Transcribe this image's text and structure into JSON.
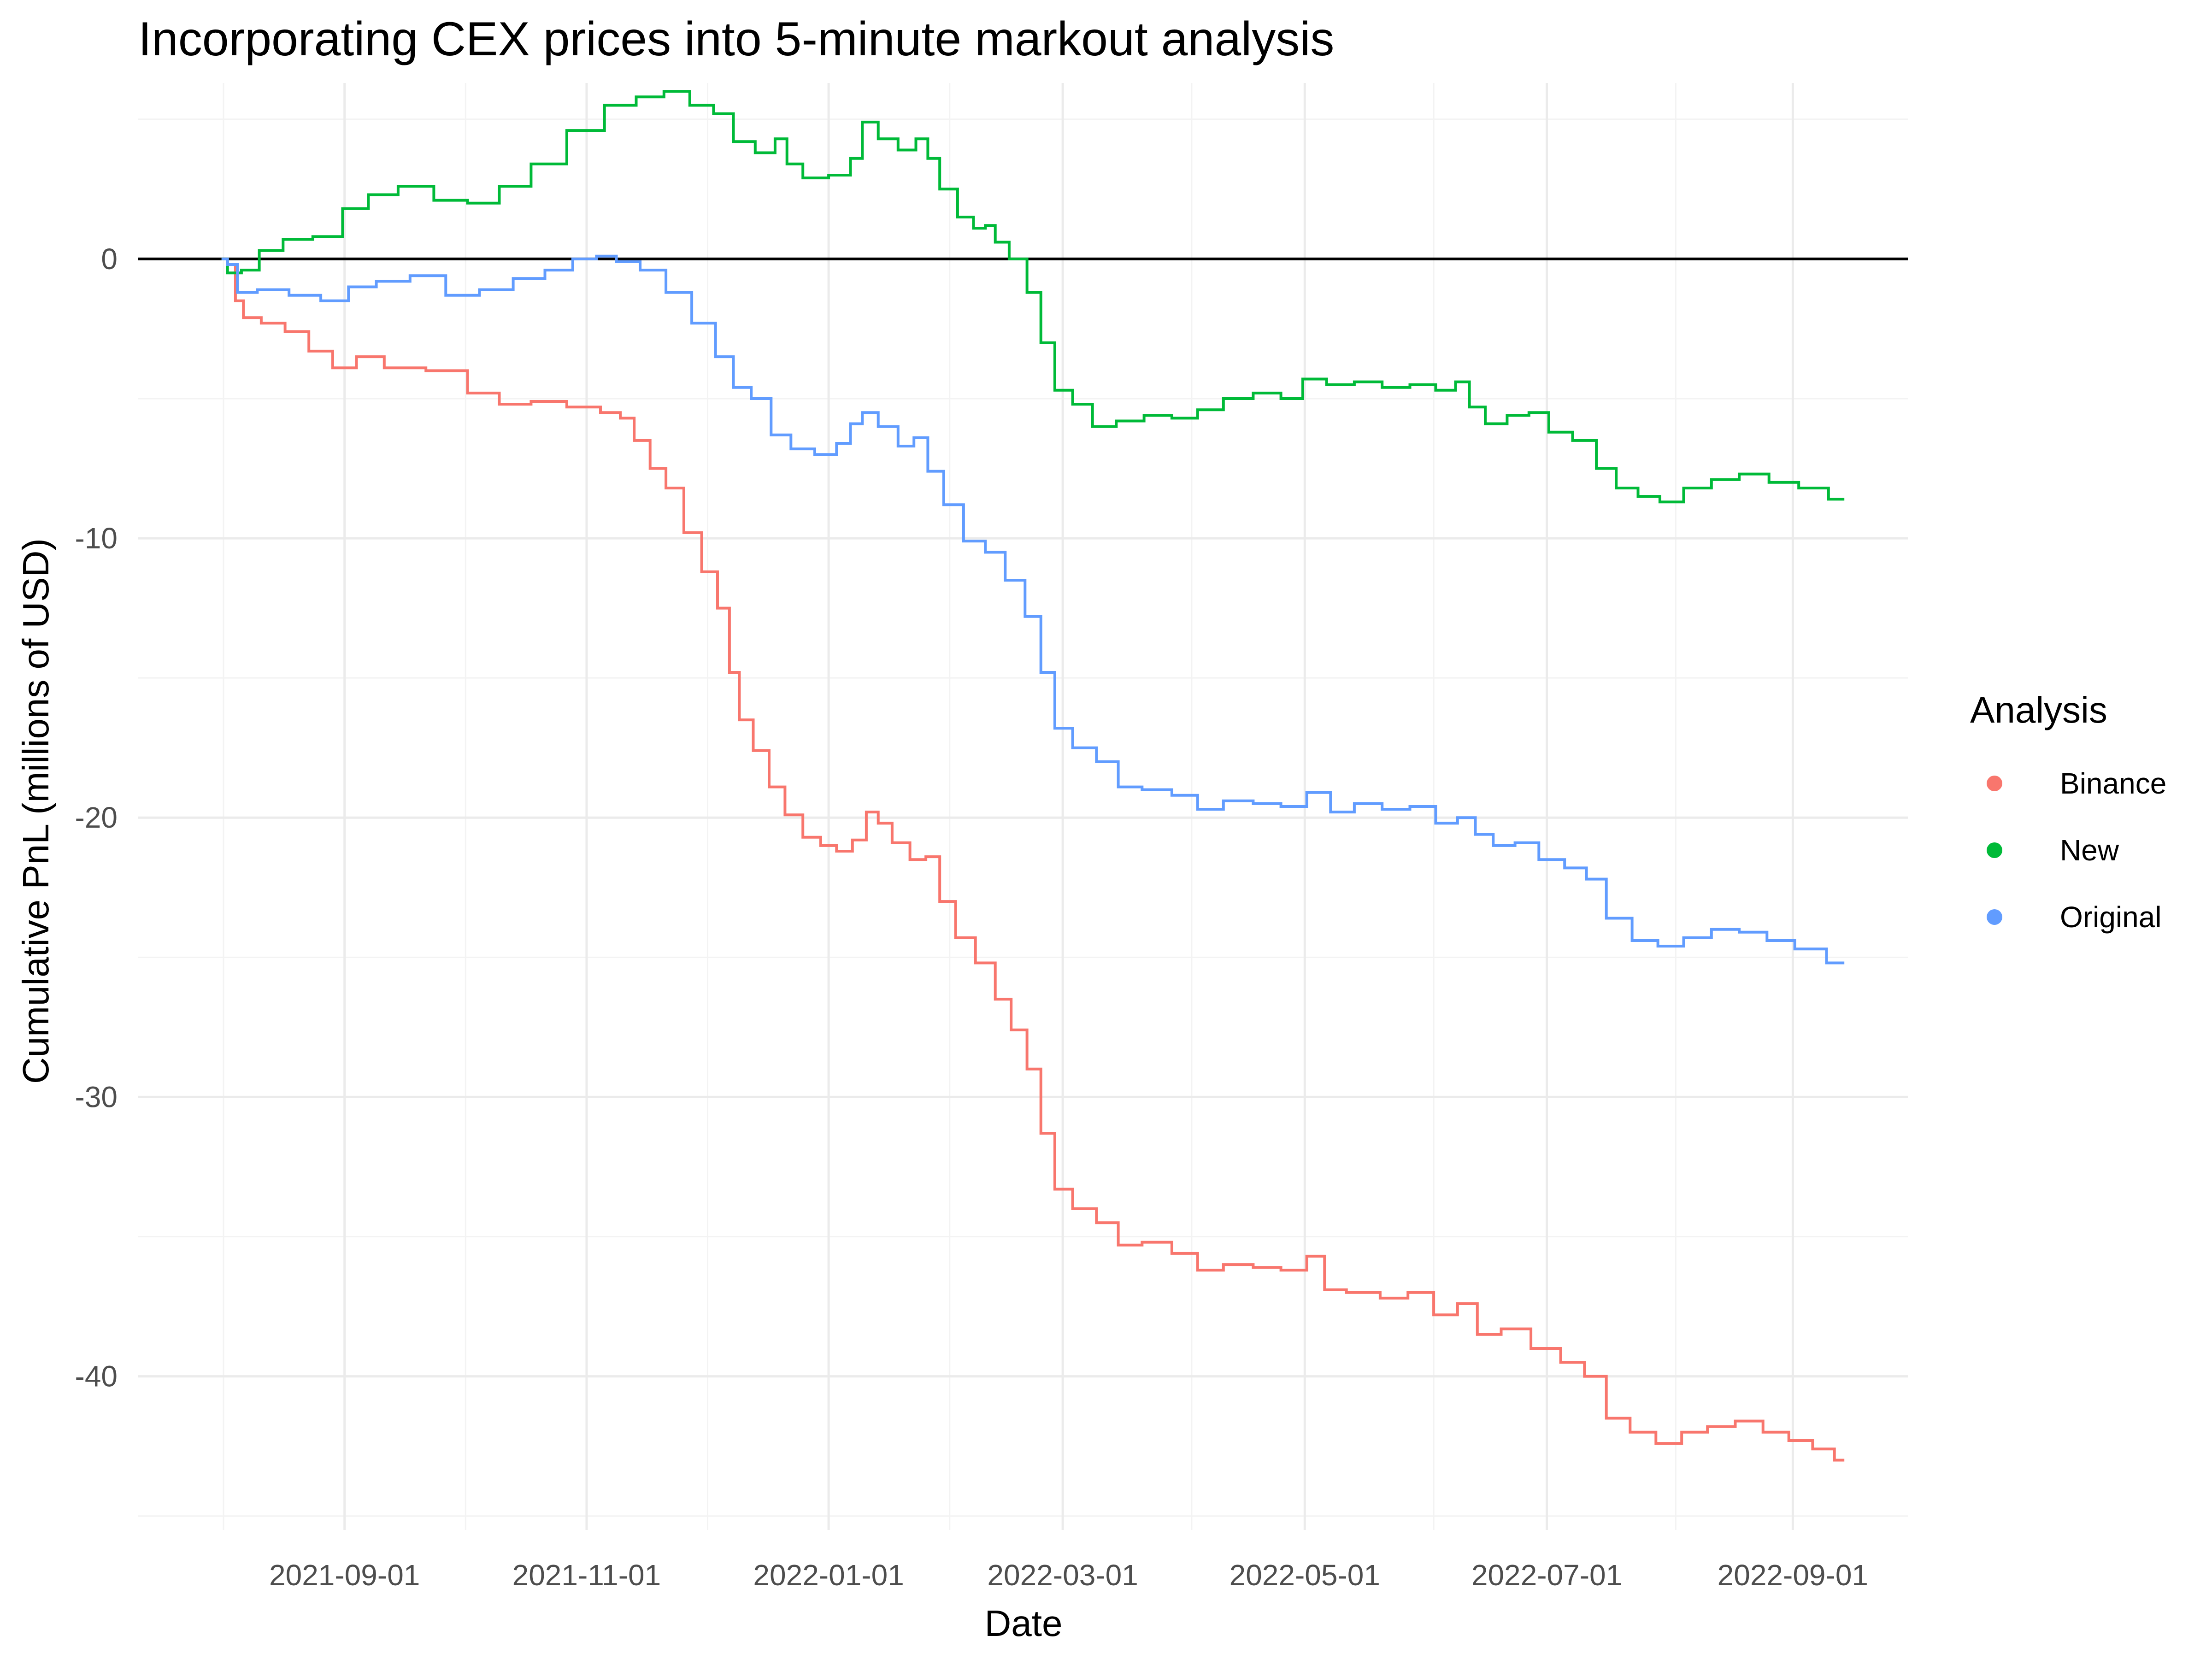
{
  "chart_data": {
    "type": "line",
    "title": "Incorporating CEX prices into 5-minute markout analysis",
    "xlabel": "Date",
    "ylabel": "Cumulative PnL (millions of USD)",
    "x_ticks": [
      "2021-09-01",
      "2021-11-01",
      "2022-01-01",
      "2022-03-01",
      "2022-05-01",
      "2022-07-01",
      "2022-09-01"
    ],
    "y_ticks": [
      0,
      -10,
      -20,
      -30,
      -40
    ],
    "xlim": [
      "2021-07-11",
      "2022-09-30"
    ],
    "ylim": [
      -45.5,
      6.3
    ],
    "grid": true,
    "reference_line": {
      "y": 0,
      "color": "#000000"
    },
    "legend": {
      "title": "Analysis",
      "placement": "right"
    },
    "series": [
      {
        "name": "Binance",
        "color": "#F8766D",
        "points": [
          [
            "2021-08-01",
            0.0
          ],
          [
            "2021-08-04",
            -0.2
          ],
          [
            "2021-08-05",
            -1.5
          ],
          [
            "2021-08-08",
            -2.1
          ],
          [
            "2021-08-14",
            -2.3
          ],
          [
            "2021-08-20",
            -2.6
          ],
          [
            "2021-08-26",
            -3.3
          ],
          [
            "2021-09-01",
            -3.9
          ],
          [
            "2021-09-07",
            -3.5
          ],
          [
            "2021-09-15",
            -3.9
          ],
          [
            "2021-09-28",
            -4.0
          ],
          [
            "2021-10-06",
            -4.8
          ],
          [
            "2021-10-14",
            -5.2
          ],
          [
            "2021-10-22",
            -5.1
          ],
          [
            "2021-11-01",
            -5.3
          ],
          [
            "2021-11-08",
            -5.5
          ],
          [
            "2021-11-11",
            -5.7
          ],
          [
            "2021-11-15",
            -6.5
          ],
          [
            "2021-11-19",
            -7.5
          ],
          [
            "2021-11-23",
            -8.2
          ],
          [
            "2021-11-28",
            -9.8
          ],
          [
            "2021-12-02",
            -11.2
          ],
          [
            "2021-12-06",
            -12.5
          ],
          [
            "2021-12-08",
            -14.8
          ],
          [
            "2021-12-11",
            -16.5
          ],
          [
            "2021-12-15",
            -17.6
          ],
          [
            "2021-12-19",
            -18.9
          ],
          [
            "2021-12-23",
            -19.9
          ],
          [
            "2021-12-28",
            -20.7
          ],
          [
            "2022-01-01",
            -21.0
          ],
          [
            "2022-01-05",
            -21.2
          ],
          [
            "2022-01-09",
            -20.8
          ],
          [
            "2022-01-12",
            -19.8
          ],
          [
            "2022-01-15",
            -20.2
          ],
          [
            "2022-01-19",
            -20.9
          ],
          [
            "2022-01-24",
            -21.5
          ],
          [
            "2022-01-27",
            -21.4
          ],
          [
            "2022-01-31",
            -23.0
          ],
          [
            "2022-02-04",
            -24.3
          ],
          [
            "2022-02-10",
            -25.2
          ],
          [
            "2022-02-14",
            -26.5
          ],
          [
            "2022-02-18",
            -27.6
          ],
          [
            "2022-02-22",
            -29.0
          ],
          [
            "2022-02-25",
            -31.3
          ],
          [
            "2022-03-01",
            -33.3
          ],
          [
            "2022-03-06",
            -34.0
          ],
          [
            "2022-03-13",
            -34.5
          ],
          [
            "2022-03-17",
            -35.3
          ],
          [
            "2022-03-25",
            -35.2
          ],
          [
            "2022-04-01",
            -35.6
          ],
          [
            "2022-04-07",
            -36.2
          ],
          [
            "2022-04-14",
            -36.0
          ],
          [
            "2022-04-22",
            -36.1
          ],
          [
            "2022-04-28",
            -36.2
          ],
          [
            "2022-05-05",
            -35.7
          ],
          [
            "2022-05-07",
            -36.9
          ],
          [
            "2022-05-16",
            -37.0
          ],
          [
            "2022-05-24",
            -37.2
          ],
          [
            "2022-05-30",
            -37.0
          ],
          [
            "2022-06-06",
            -37.8
          ],
          [
            "2022-06-11",
            -37.4
          ],
          [
            "2022-06-16",
            -38.5
          ],
          [
            "2022-06-23",
            -38.3
          ],
          [
            "2022-07-01",
            -39.0
          ],
          [
            "2022-07-08",
            -39.5
          ],
          [
            "2022-07-13",
            -40.0
          ],
          [
            "2022-07-19",
            -41.5
          ],
          [
            "2022-07-25",
            -42.0
          ],
          [
            "2022-08-01",
            -42.4
          ],
          [
            "2022-08-07",
            -42.0
          ],
          [
            "2022-08-14",
            -41.8
          ],
          [
            "2022-08-21",
            -41.6
          ],
          [
            "2022-08-28",
            -42.0
          ],
          [
            "2022-09-03",
            -42.3
          ],
          [
            "2022-09-09",
            -42.6
          ],
          [
            "2022-09-14",
            -43.0
          ]
        ]
      },
      {
        "name": "New",
        "color": "#00BA38",
        "points": [
          [
            "2021-08-01",
            0.0
          ],
          [
            "2021-08-04",
            -0.5
          ],
          [
            "2021-08-08",
            -0.4
          ],
          [
            "2021-08-13",
            0.3
          ],
          [
            "2021-08-20",
            0.7
          ],
          [
            "2021-08-28",
            0.8
          ],
          [
            "2021-09-04",
            1.8
          ],
          [
            "2021-09-10",
            2.3
          ],
          [
            "2021-09-19",
            2.6
          ],
          [
            "2021-09-28",
            2.1
          ],
          [
            "2021-10-06",
            2.0
          ],
          [
            "2021-10-14",
            2.6
          ],
          [
            "2021-10-22",
            3.4
          ],
          [
            "2021-11-01",
            4.6
          ],
          [
            "2021-11-10",
            5.5
          ],
          [
            "2021-11-17",
            5.8
          ],
          [
            "2021-11-24",
            6.0
          ],
          [
            "2021-11-30",
            5.5
          ],
          [
            "2021-12-06",
            5.2
          ],
          [
            "2021-12-10",
            4.2
          ],
          [
            "2021-12-17",
            3.8
          ],
          [
            "2021-12-20",
            4.3
          ],
          [
            "2021-12-23",
            3.4
          ],
          [
            "2021-12-28",
            2.9
          ],
          [
            "2022-01-05",
            3.0
          ],
          [
            "2022-01-08",
            3.6
          ],
          [
            "2022-01-11",
            4.9
          ],
          [
            "2022-01-16",
            4.3
          ],
          [
            "2022-01-21",
            3.9
          ],
          [
            "2022-01-25",
            4.3
          ],
          [
            "2022-01-27",
            3.6
          ],
          [
            "2022-01-31",
            2.5
          ],
          [
            "2022-02-05",
            1.5
          ],
          [
            "2022-02-08",
            1.1
          ],
          [
            "2022-02-11",
            1.2
          ],
          [
            "2022-02-13",
            0.6
          ],
          [
            "2022-02-18",
            0.0
          ],
          [
            "2022-02-22",
            -1.2
          ],
          [
            "2022-02-25",
            -3.0
          ],
          [
            "2022-03-01",
            -4.7
          ],
          [
            "2022-03-06",
            -5.2
          ],
          [
            "2022-03-11",
            -6.0
          ],
          [
            "2022-03-18",
            -5.8
          ],
          [
            "2022-03-25",
            -5.6
          ],
          [
            "2022-04-01",
            -5.7
          ],
          [
            "2022-04-07",
            -5.4
          ],
          [
            "2022-04-14",
            -5.0
          ],
          [
            "2022-04-22",
            -4.8
          ],
          [
            "2022-04-28",
            -5.0
          ],
          [
            "2022-05-03",
            -4.3
          ],
          [
            "2022-05-10",
            -4.5
          ],
          [
            "2022-05-17",
            -4.4
          ],
          [
            "2022-05-24",
            -4.6
          ],
          [
            "2022-05-31",
            -4.5
          ],
          [
            "2022-06-06",
            -4.7
          ],
          [
            "2022-06-10",
            -4.4
          ],
          [
            "2022-06-13",
            -5.3
          ],
          [
            "2022-06-18",
            -5.9
          ],
          [
            "2022-06-24",
            -5.6
          ],
          [
            "2022-06-29",
            -5.5
          ],
          [
            "2022-07-04",
            -6.2
          ],
          [
            "2022-07-11",
            -6.5
          ],
          [
            "2022-07-16",
            -7.5
          ],
          [
            "2022-07-21",
            -8.2
          ],
          [
            "2022-07-27",
            -8.5
          ],
          [
            "2022-08-01",
            -8.7
          ],
          [
            "2022-08-08",
            -8.2
          ],
          [
            "2022-08-15",
            -7.9
          ],
          [
            "2022-08-22",
            -7.7
          ],
          [
            "2022-08-30",
            -8.0
          ],
          [
            "2022-09-06",
            -8.2
          ],
          [
            "2022-09-14",
            -8.6
          ]
        ]
      },
      {
        "name": "Original",
        "color": "#619CFF",
        "points": [
          [
            "2021-08-01",
            0.0
          ],
          [
            "2021-08-04",
            -0.2
          ],
          [
            "2021-08-06",
            -1.2
          ],
          [
            "2021-08-14",
            -1.1
          ],
          [
            "2021-08-22",
            -1.3
          ],
          [
            "2021-08-30",
            -1.5
          ],
          [
            "2021-09-05",
            -1.0
          ],
          [
            "2021-09-13",
            -0.8
          ],
          [
            "2021-09-22",
            -0.6
          ],
          [
            "2021-10-01",
            -1.3
          ],
          [
            "2021-10-09",
            -1.1
          ],
          [
            "2021-10-18",
            -0.7
          ],
          [
            "2021-10-25",
            -0.4
          ],
          [
            "2021-11-01",
            0.0
          ],
          [
            "2021-11-06",
            0.1
          ],
          [
            "2021-11-11",
            -0.1
          ],
          [
            "2021-11-18",
            -0.4
          ],
          [
            "2021-11-24",
            -1.2
          ],
          [
            "2021-12-01",
            -2.3
          ],
          [
            "2021-12-06",
            -3.5
          ],
          [
            "2021-12-10",
            -4.6
          ],
          [
            "2021-12-15",
            -5.0
          ],
          [
            "2021-12-20",
            -6.3
          ],
          [
            "2021-12-25",
            -6.8
          ],
          [
            "2022-01-01",
            -7.0
          ],
          [
            "2022-01-05",
            -6.6
          ],
          [
            "2022-01-08",
            -5.9
          ],
          [
            "2022-01-11",
            -5.5
          ],
          [
            "2022-01-16",
            -6.0
          ],
          [
            "2022-01-21",
            -6.7
          ],
          [
            "2022-01-24",
            -6.4
          ],
          [
            "2022-01-28",
            -7.6
          ],
          [
            "2022-02-01",
            -8.8
          ],
          [
            "2022-02-07",
            -10.1
          ],
          [
            "2022-02-12",
            -10.5
          ],
          [
            "2022-02-17",
            -11.5
          ],
          [
            "2022-02-22",
            -12.8
          ],
          [
            "2022-02-25",
            -14.8
          ],
          [
            "2022-03-01",
            -16.8
          ],
          [
            "2022-03-06",
            -17.5
          ],
          [
            "2022-03-13",
            -18.0
          ],
          [
            "2022-03-17",
            -18.9
          ],
          [
            "2022-03-25",
            -19.0
          ],
          [
            "2022-04-01",
            -19.2
          ],
          [
            "2022-04-07",
            -19.7
          ],
          [
            "2022-04-14",
            -19.4
          ],
          [
            "2022-04-22",
            -19.5
          ],
          [
            "2022-04-28",
            -19.6
          ],
          [
            "2022-05-05",
            -19.1
          ],
          [
            "2022-05-10",
            -19.8
          ],
          [
            "2022-05-17",
            -19.5
          ],
          [
            "2022-05-24",
            -19.7
          ],
          [
            "2022-05-31",
            -19.6
          ],
          [
            "2022-06-06",
            -20.2
          ],
          [
            "2022-06-11",
            -20.0
          ],
          [
            "2022-06-15",
            -20.6
          ],
          [
            "2022-06-20",
            -21.0
          ],
          [
            "2022-06-26",
            -20.9
          ],
          [
            "2022-07-02",
            -21.5
          ],
          [
            "2022-07-09",
            -21.8
          ],
          [
            "2022-07-13",
            -22.2
          ],
          [
            "2022-07-19",
            -23.6
          ],
          [
            "2022-07-26",
            -24.4
          ],
          [
            "2022-08-01",
            -24.6
          ],
          [
            "2022-08-08",
            -24.3
          ],
          [
            "2022-08-15",
            -24.0
          ],
          [
            "2022-08-22",
            -24.1
          ],
          [
            "2022-08-29",
            -24.4
          ],
          [
            "2022-09-05",
            -24.7
          ],
          [
            "2022-09-14",
            -25.2
          ]
        ]
      }
    ]
  }
}
